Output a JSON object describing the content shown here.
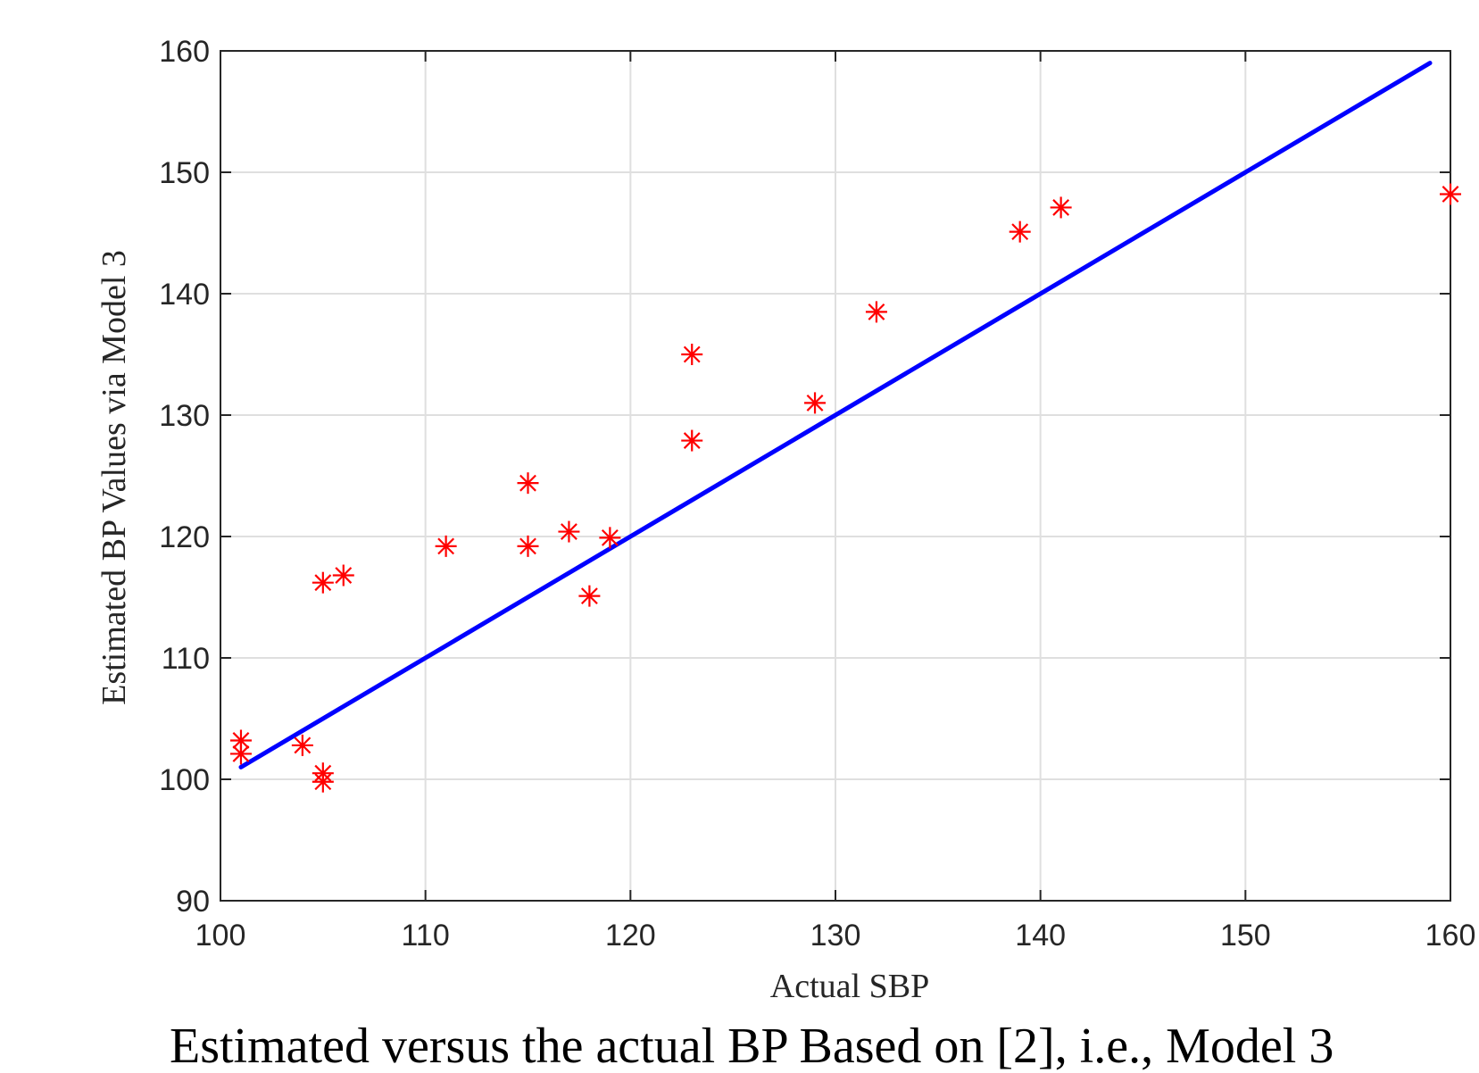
{
  "chart_data": {
    "type": "scatter",
    "xlabel": "Actual SBP",
    "ylabel": "Estimated BP Values via Model 3",
    "caption": "Estimated versus the actual BP Based on [2], i.e., Model 3",
    "xlim": [
      100,
      160
    ],
    "ylim": [
      90,
      160
    ],
    "x_ticks": [
      "100",
      "110",
      "120",
      "130",
      "140",
      "150",
      "160"
    ],
    "y_ticks": [
      "90",
      "100",
      "110",
      "120",
      "130",
      "140",
      "150",
      "160"
    ],
    "grid": true,
    "colors": {
      "points": "#ff0000",
      "line": "#0000ff"
    },
    "series": [
      {
        "kind": "scatter",
        "marker": "asterisk",
        "points": [
          [
            101,
            103.2
          ],
          [
            101,
            102.1
          ],
          [
            104,
            102.8
          ],
          [
            105,
            100.5
          ],
          [
            105,
            99.8
          ],
          [
            105,
            116.2
          ],
          [
            106,
            116.8
          ],
          [
            111,
            119.2
          ],
          [
            115,
            124.4
          ],
          [
            115,
            119.2
          ],
          [
            117,
            120.4
          ],
          [
            118,
            115.1
          ],
          [
            119,
            119.9
          ],
          [
            123,
            135.0
          ],
          [
            123,
            127.9
          ],
          [
            129,
            131.0
          ],
          [
            132,
            138.5
          ],
          [
            139,
            145.1
          ],
          [
            141,
            147.1
          ],
          [
            160,
            148.2
          ]
        ]
      },
      {
        "kind": "line",
        "points": [
          [
            101,
            101
          ],
          [
            159,
            159
          ]
        ]
      }
    ]
  }
}
